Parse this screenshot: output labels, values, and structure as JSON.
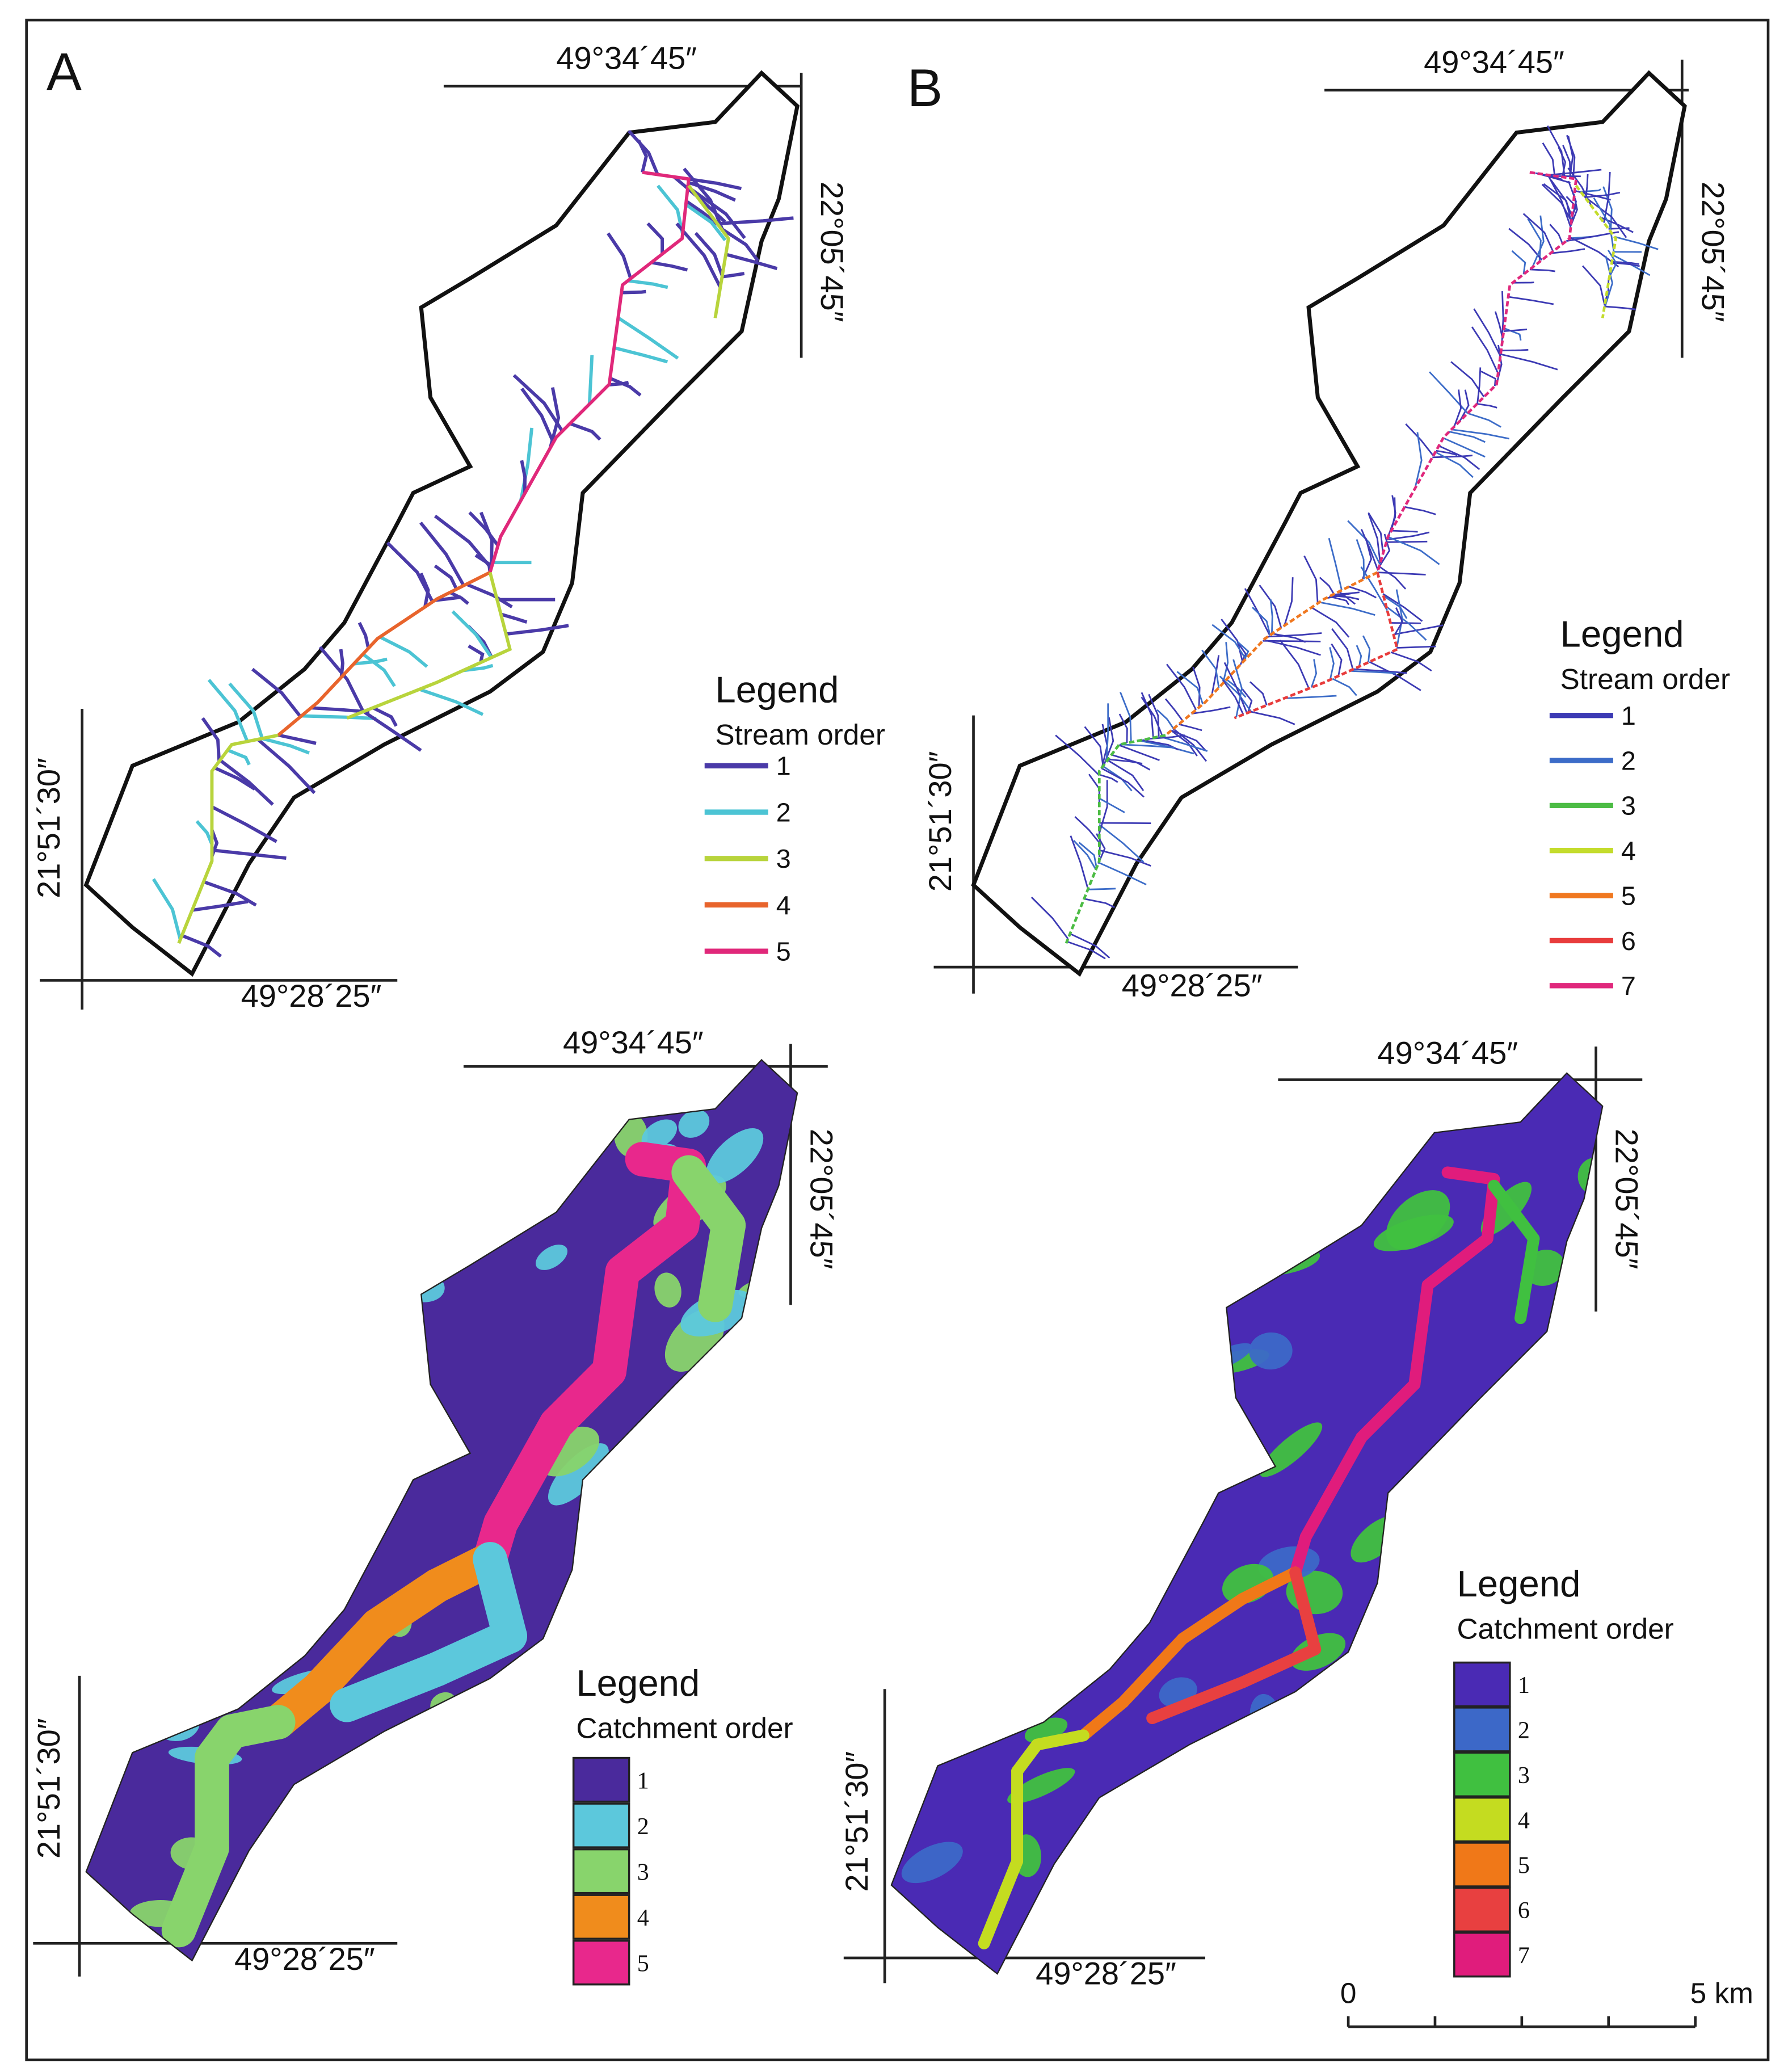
{
  "panels": [
    {
      "label": "A",
      "coords": {
        "top": "49°34´45″",
        "right": "22°05´45″",
        "left": "21°51´30″",
        "bottom": "49°28´25″"
      },
      "legend": {
        "title": "Legend",
        "subtitle": "Stream order",
        "items": [
          {
            "label": "1",
            "color": "#4a3aa8"
          },
          {
            "label": "2",
            "color": "#4cc4d4"
          },
          {
            "label": "3",
            "color": "#b8d43c"
          },
          {
            "label": "4",
            "color": "#e8642c"
          },
          {
            "label": "5",
            "color": "#e0287a"
          }
        ]
      }
    },
    {
      "label": "B",
      "coords": {
        "top": "49°34´45″",
        "right": "22°05´45″",
        "left": "21°51´30″",
        "bottom": "49°28´25″"
      },
      "legend": {
        "title": "Legend",
        "subtitle": "Stream order",
        "items": [
          {
            "label": "1",
            "color": "#3c3ab4"
          },
          {
            "label": "2",
            "color": "#3c6cc8"
          },
          {
            "label": "3",
            "color": "#4cbc44"
          },
          {
            "label": "4",
            "color": "#c4dc2c"
          },
          {
            "label": "5",
            "color": "#f07820"
          },
          {
            "label": "6",
            "color": "#e83c3c"
          },
          {
            "label": "7",
            "color": "#e0287c"
          }
        ]
      }
    },
    {
      "coords": {
        "top": "49°34´45″",
        "right": "22°05´45″",
        "left": "21°51´30″",
        "bottom": "49°28´25″"
      },
      "legend": {
        "title": "Legend",
        "subtitle": "Catchment order",
        "items": [
          {
            "label": "1",
            "color": "#4a2a9c"
          },
          {
            "label": "2",
            "color": "#5cc8dc"
          },
          {
            "label": "3",
            "color": "#88d46c"
          },
          {
            "label": "4",
            "color": "#f08c1c"
          },
          {
            "label": "5",
            "color": "#e8288c"
          }
        ]
      }
    },
    {
      "coords": {
        "top": "49°34´45″",
        "right": "22°05´45″",
        "left": "21°51´30″",
        "bottom": "49°28´25″"
      },
      "legend": {
        "title": "Legend",
        "subtitle": "Catchment order",
        "items": [
          {
            "label": "1",
            "color": "#4a2ab4"
          },
          {
            "label": "2",
            "color": "#3c68c8"
          },
          {
            "label": "3",
            "color": "#40c040"
          },
          {
            "label": "4",
            "color": "#c4dc20"
          },
          {
            "label": "5",
            "color": "#f07818"
          },
          {
            "label": "6",
            "color": "#e84040"
          },
          {
            "label": "7",
            "color": "#e01c7c"
          }
        ]
      }
    }
  ],
  "scale_bar": {
    "start": "0",
    "end": "5 km"
  }
}
